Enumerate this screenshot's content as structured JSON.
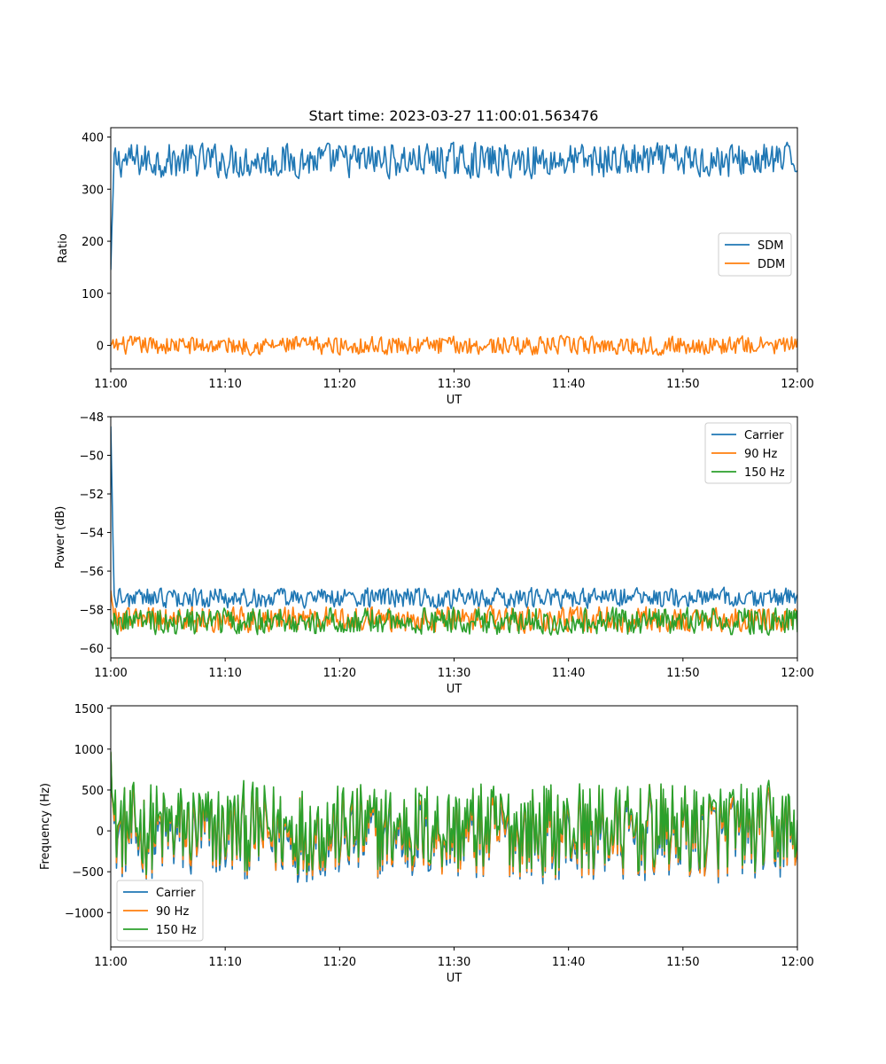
{
  "chart_data": [
    {
      "type": "line",
      "title": "Start time: 2023-03-27 11:00:01.563476",
      "xlabel": "UT",
      "ylabel": "Ratio",
      "xlim": [
        "11:00",
        "12:00"
      ],
      "ylim": [
        -45,
        418
      ],
      "xticks": [
        "11:00",
        "11:10",
        "11:20",
        "11:30",
        "11:40",
        "11:50",
        "12:00"
      ],
      "yticks": [
        0,
        100,
        200,
        300,
        400
      ],
      "grid": false,
      "legend_position": "center-right",
      "series": [
        {
          "name": "SDM",
          "color": "#1f77b4",
          "start_value": 145,
          "mean": 355,
          "noise_amplitude": 22
        },
        {
          "name": "DDM",
          "color": "#ff7f0e",
          "start_value": 0,
          "mean": 0,
          "noise_amplitude": 12
        }
      ]
    },
    {
      "type": "line",
      "title": "",
      "xlabel": "UT",
      "ylabel": "Power (dB)",
      "xlim": [
        "11:00",
        "12:00"
      ],
      "ylim": [
        -60.5,
        -48
      ],
      "xticks": [
        "11:00",
        "11:10",
        "11:20",
        "11:30",
        "11:40",
        "11:50",
        "12:00"
      ],
      "yticks": [
        -60,
        -58,
        -56,
        -54,
        -52,
        -50,
        -48
      ],
      "grid": false,
      "legend_position": "top-right",
      "series": [
        {
          "name": "Carrier",
          "color": "#1f77b4",
          "start_value": -48.5,
          "mean": -57.4,
          "noise_amplitude": 0.35
        },
        {
          "name": "90 Hz",
          "color": "#ff7f0e",
          "start_value": -57,
          "mean": -58.5,
          "noise_amplitude": 0.45
        },
        {
          "name": "150 Hz",
          "color": "#2ca02c",
          "start_value": -58.5,
          "mean": -58.6,
          "noise_amplitude": 0.45
        }
      ]
    },
    {
      "type": "line",
      "title": "",
      "xlabel": "UT",
      "ylabel": "Frequency (Hz)",
      "xlim": [
        "11:00",
        "12:00"
      ],
      "ylim": [
        -1420,
        1530
      ],
      "xticks": [
        "11:00",
        "11:10",
        "11:20",
        "11:30",
        "11:40",
        "11:50",
        "12:00"
      ],
      "yticks": [
        -1000,
        -500,
        0,
        500,
        1000,
        1500
      ],
      "grid": false,
      "legend_position": "bottom-left",
      "series": [
        {
          "name": "Carrier",
          "color": "#1f77b4",
          "start_value": 950,
          "mean": -60,
          "noise_amplitude": 380
        },
        {
          "name": "90 Hz",
          "color": "#ff7f0e",
          "start_value": 960,
          "mean": -20,
          "noise_amplitude": 380
        },
        {
          "name": "150 Hz",
          "color": "#2ca02c",
          "start_value": 970,
          "mean": 40,
          "noise_amplitude": 380
        }
      ]
    }
  ]
}
